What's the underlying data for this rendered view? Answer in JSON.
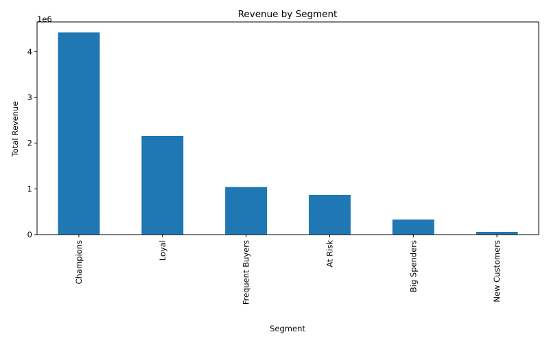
{
  "chart_data": {
    "type": "bar",
    "title": "Revenue by Segment",
    "xlabel": "Segment",
    "ylabel": "Total Revenue",
    "offset_label": "1e6",
    "categories": [
      "Champions",
      "Loyal",
      "Frequent Buyers",
      "At Risk",
      "Big Spenders",
      "New Customers"
    ],
    "values": [
      4420000,
      2160000,
      1040000,
      870000,
      330000,
      60000
    ],
    "ylim": [
      0,
      4650000
    ],
    "y_ticks": [
      0,
      1000000,
      2000000,
      3000000,
      4000000
    ],
    "y_tick_labels": [
      "0",
      "1",
      "2",
      "3",
      "4"
    ],
    "x_tick_rotation": "vertical",
    "grid": false,
    "legend": "none",
    "bar_color": "#1f77b4"
  }
}
